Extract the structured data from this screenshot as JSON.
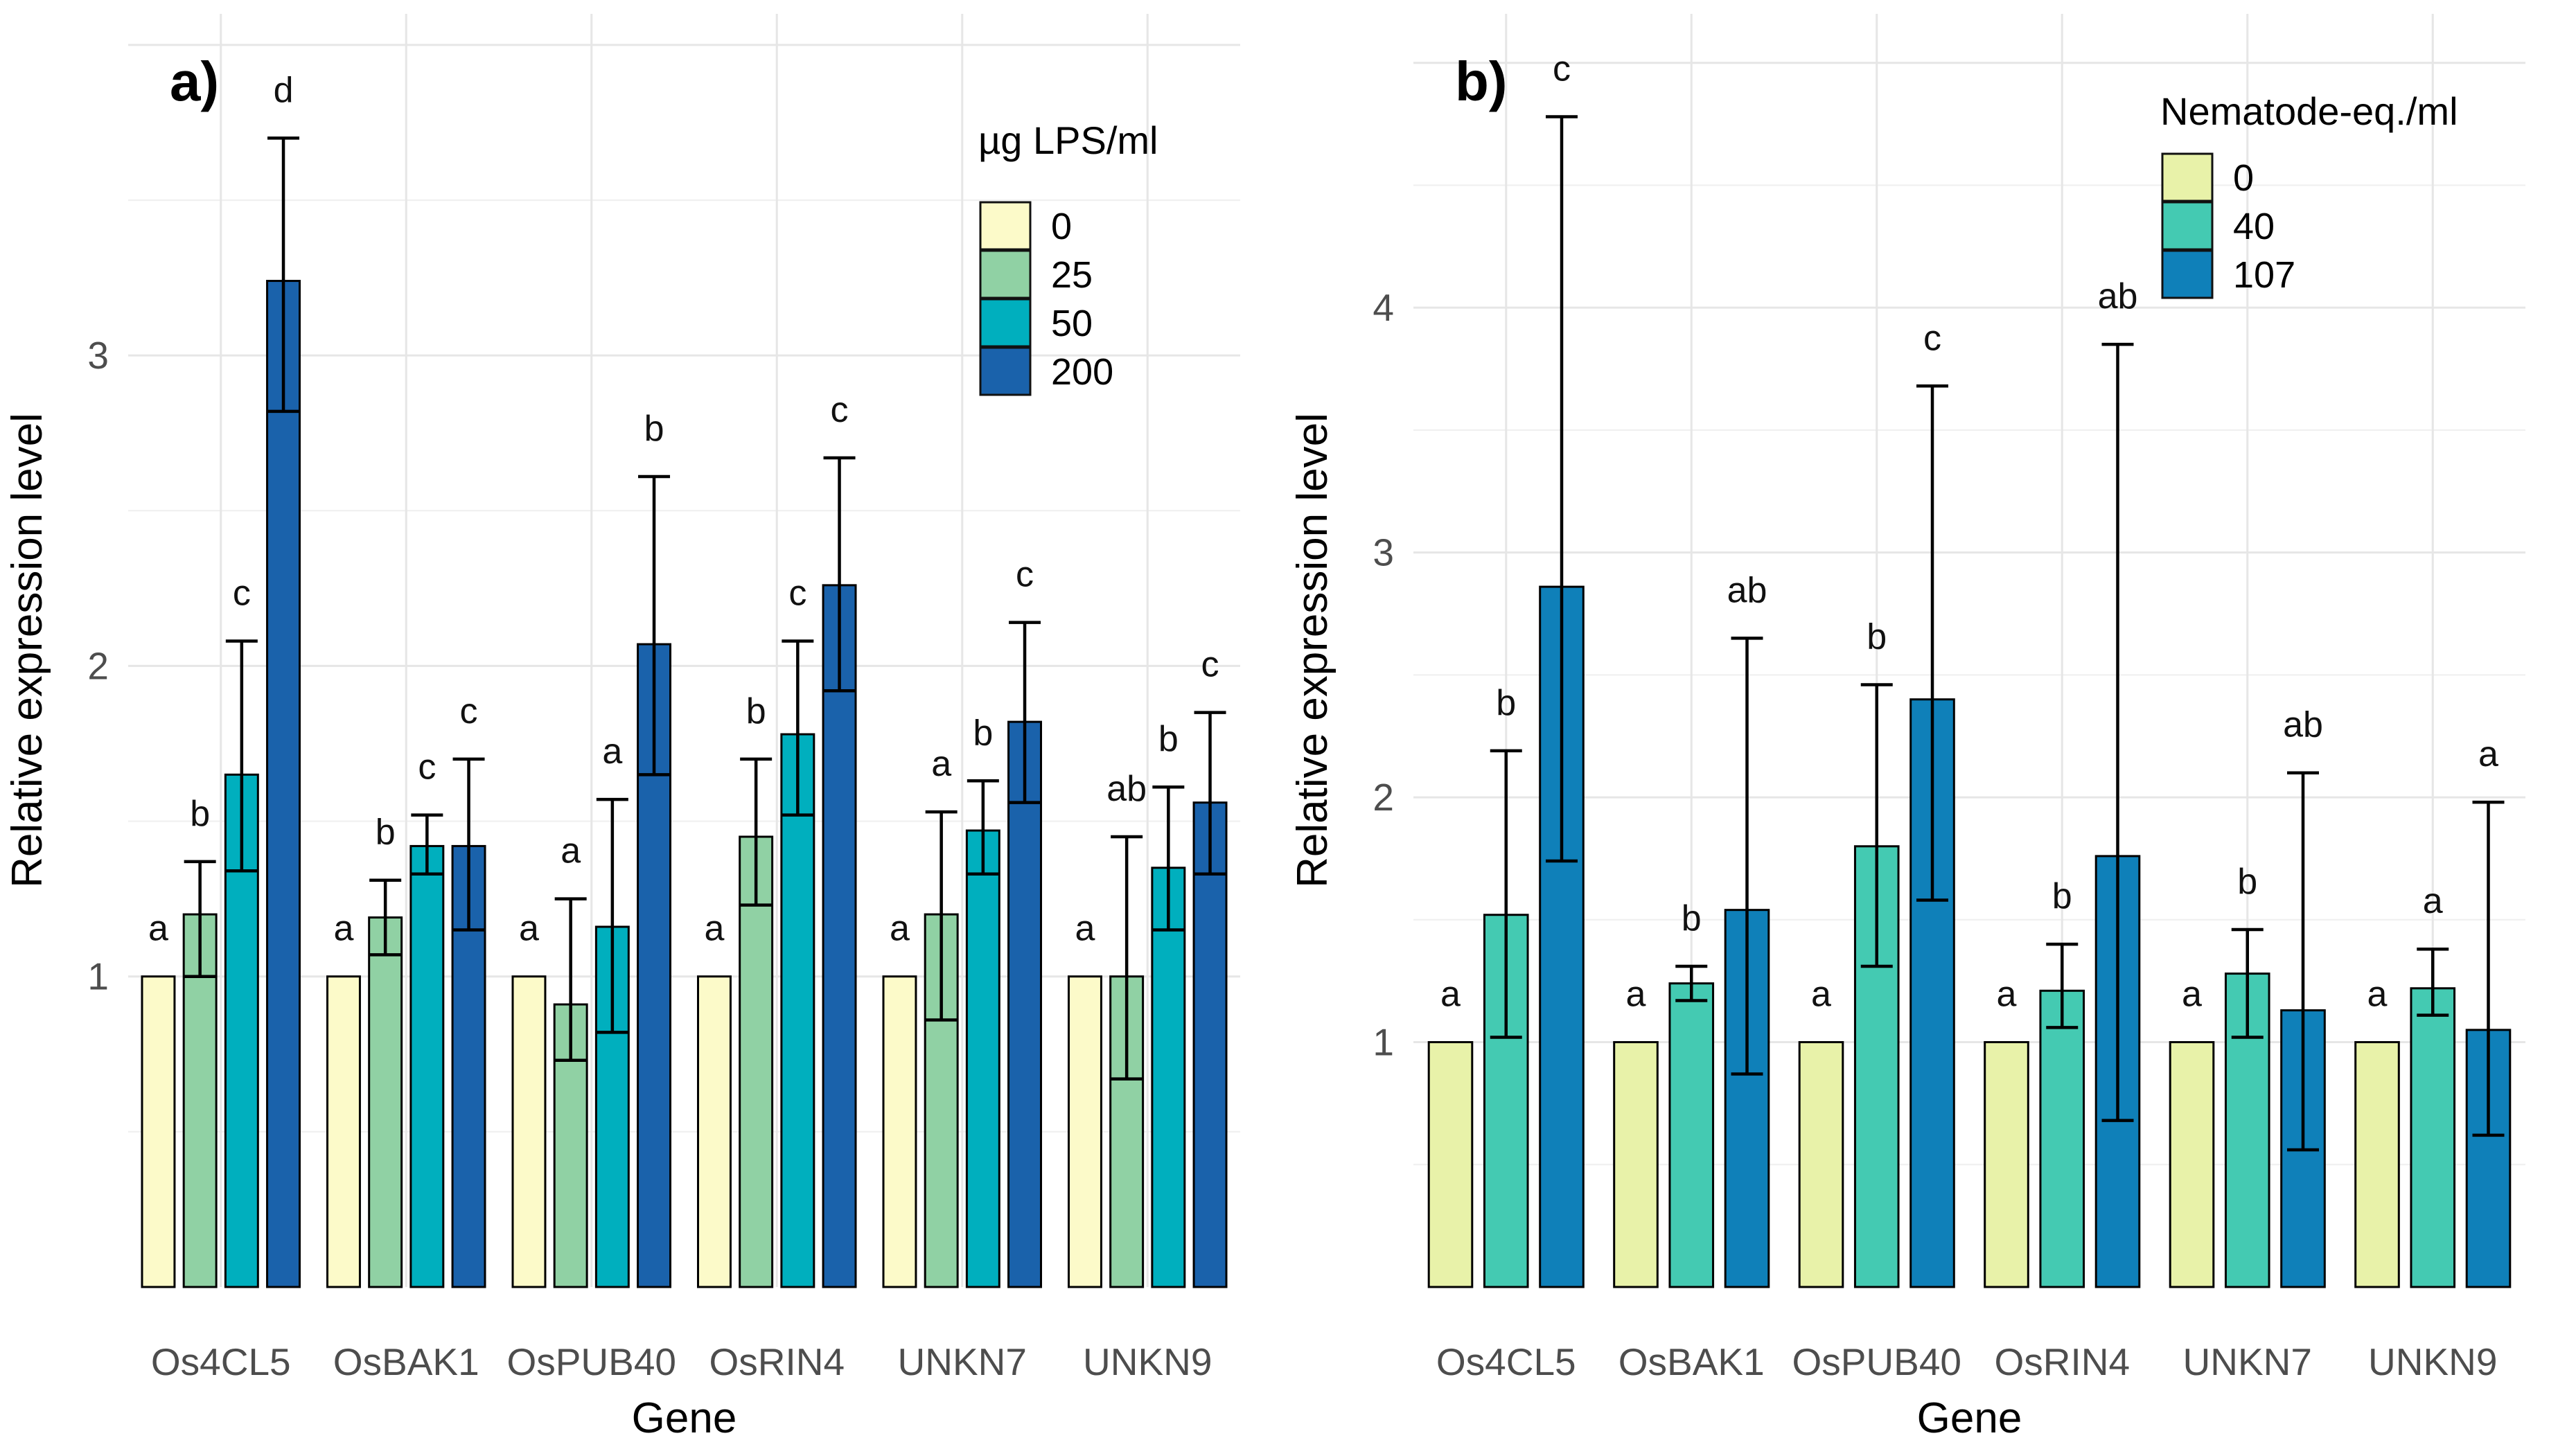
{
  "figure": {
    "background": "#FFFFFF",
    "text_color": "#000000",
    "tick_label_color": "#4D4D4D",
    "grid_major_color": "#E6E6E6",
    "grid_minor_color": "#F0F0F0",
    "bar_outline_color": "#000000",
    "errorbar_color": "#000000"
  },
  "chart_data": [
    {
      "id": "panel-a",
      "type": "bar",
      "panel_label": "a)",
      "xlabel": "Gene",
      "ylabel": "Relative expression level",
      "categories": [
        "Os4CL5",
        "OsBAK1",
        "OsPUB40",
        "OsRIN4",
        "UNKN7",
        "UNKN9"
      ],
      "y_ticks": [
        "1",
        "2",
        "3"
      ],
      "ylim": [
        0,
        4.1
      ],
      "grid_step": 0.5,
      "legend_position": "top-right-inside",
      "legend": {
        "title": "µg LPS/ml",
        "entries": [
          {
            "label": "0",
            "color": "#FCFAC9"
          },
          {
            "label": "25",
            "color": "#90D1A4"
          },
          {
            "label": "50",
            "color": "#00AFBE"
          },
          {
            "label": "200",
            "color": "#1A62AB"
          }
        ]
      },
      "series": [
        {
          "name": "0",
          "color": "#FCFAC9",
          "values": [
            1,
            1,
            1,
            1,
            1,
            1
          ],
          "err_low": null,
          "err_high": null,
          "letters": [
            "a",
            "a",
            "a",
            "a",
            "a",
            "a"
          ]
        },
        {
          "name": "25",
          "color": "#90D1A4",
          "values": [
            1.2,
            1.19,
            0.91,
            1.45,
            1.2,
            1.0
          ],
          "err_low": [
            1.0,
            1.07,
            0.73,
            1.23,
            0.86,
            0.67
          ],
          "err_high": [
            1.37,
            1.31,
            1.25,
            1.7,
            1.53,
            1.45
          ],
          "letters": [
            "b",
            "b",
            "a",
            "b",
            "a",
            "ab"
          ]
        },
        {
          "name": "50",
          "color": "#00AFBE",
          "values": [
            1.65,
            1.42,
            1.16,
            1.78,
            1.47,
            1.35
          ],
          "err_low": [
            1.34,
            1.33,
            0.82,
            1.52,
            1.33,
            1.15
          ],
          "err_high": [
            2.08,
            1.52,
            1.57,
            2.08,
            1.63,
            1.61
          ],
          "letters": [
            "c",
            "c",
            "a",
            "c",
            "b",
            "b"
          ]
        },
        {
          "name": "200",
          "color": "#1A62AB",
          "values": [
            3.24,
            1.42,
            2.07,
            2.26,
            1.82,
            1.56
          ],
          "err_low": [
            2.82,
            1.15,
            1.65,
            1.92,
            1.56,
            1.33
          ],
          "err_high": [
            3.7,
            1.7,
            2.61,
            2.67,
            2.14,
            1.85
          ],
          "letters": [
            "d",
            "c",
            "b",
            "c",
            "c",
            "c"
          ]
        }
      ]
    },
    {
      "id": "panel-b",
      "type": "bar",
      "panel_label": "b)",
      "xlabel": "Gene",
      "ylabel": "Relative expression level",
      "categories": [
        "Os4CL5",
        "OsBAK1",
        "OsPUB40",
        "OsRIN4",
        "UNKN7",
        "UNKN9"
      ],
      "y_ticks": [
        "1",
        "2",
        "3",
        "4"
      ],
      "ylim": [
        0,
        5.2
      ],
      "grid_step": 0.5,
      "legend_position": "top-right-inside",
      "legend": {
        "title": "Nematode-eq./ml",
        "entries": [
          {
            "label": "0",
            "color": "#E8F2A9"
          },
          {
            "label": "40",
            "color": "#44CAB2"
          },
          {
            "label": "107",
            "color": "#0F80B9"
          }
        ]
      },
      "series": [
        {
          "name": "0",
          "color": "#E8F2A9",
          "values": [
            1,
            1,
            1,
            1,
            1,
            1
          ],
          "err_low": null,
          "err_high": null,
          "letters": [
            "a",
            "a",
            "a",
            "a",
            "a",
            "a"
          ]
        },
        {
          "name": "40",
          "color": "#44CAB2",
          "values": [
            1.52,
            1.24,
            1.8,
            1.21,
            1.28,
            1.22
          ],
          "err_low": [
            1.02,
            1.17,
            1.31,
            1.06,
            1.02,
            1.11
          ],
          "err_high": [
            2.19,
            1.31,
            2.46,
            1.4,
            1.46,
            1.38
          ],
          "letters": [
            "b",
            "b",
            "b",
            "b",
            "b",
            "a"
          ]
        },
        {
          "name": "107",
          "color": "#0F80B9",
          "values": [
            2.86,
            1.54,
            2.4,
            1.76,
            1.13,
            1.05
          ],
          "err_low": [
            1.74,
            0.87,
            1.58,
            0.68,
            0.56,
            0.62
          ],
          "err_high": [
            4.78,
            2.65,
            3.68,
            3.85,
            2.1,
            1.98
          ],
          "letters": [
            "c",
            "ab",
            "c",
            "ab",
            "ab",
            "a"
          ]
        }
      ]
    }
  ]
}
